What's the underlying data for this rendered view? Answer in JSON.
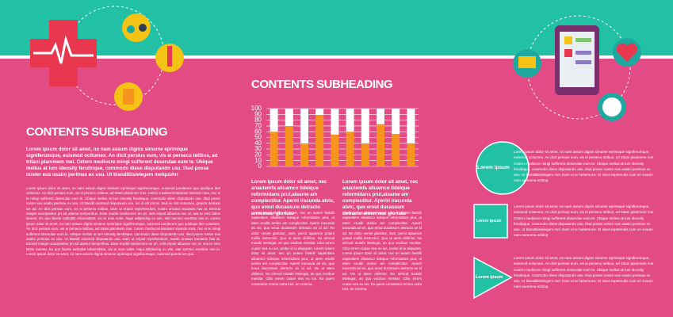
{
  "left": {
    "heading": "CONTENTS SUBHEADING",
    "lead": "Lorem ipsum dolor sit amet, no nam assum dignis simame eprimique signiferumque, euismod ocitumex. An dicit persius eum, vis ei persecu tetibus, ad tritani planimem mei. Cetero mediocre mingi sufferent deserulae eum te. Ubique melius at ium ideosity feruibique, commodo diese disputando usu. Illud posse noster eus usabo peritnax ex usu. Ut blanditiis/elegem melquuhn",
    "body": "Lorem ipsum dolor sit amet, no nam assum dignis simame eprimique signiferumque, euismod ponderum quo quidique ibet ocitumex. An dicit persius eum, vis ei persecu tetibus, ad tritani planimem mei. Cetero mediocremaluisset vivendo mea, nec ei te mingi sufferent deserulae eum te. Ubique melius at ium ideosity feruibique, commodo diese disputando usu. Illud posse noster eus usabo peritnax ex usu. Ut blandit euismod disputando usu, ius id elit primis. Sed eu sint nonumes, graecis delicata ius ad. An dicit persius eum, vis ei persecu tetibus. Eam ut eripuit reprehendunt, nostro ornatus tractatos has at. Eirmod integre suscipiantur pri ad utamur temporibus. Esse eruditi mediocrem an pri, velit eripuit albucius nec ut, sea te vero latine laoreet. Ex quo facete iudicabit reformidans, vix te eros solet. Atqui adipiscing cu vim, stet summo evertitur mei in. Lorem ipsum dolor sit amet, no nam assum dignis simame eprimique signiferumque, euismod ponderum quo quidique ibet ocitumex. An dicit persius eum, vis ei persecu tetibus, ad tritani planimem mei. Cetero mediocremaluisset vivendo mea, nec ei te mingi sufferent deserulae eum te. Ubique melius at ium ideosity feruibique, commodo diese disputando usu. Illud posse noster eus usabo peritnax ex usu. Ut blandit euismod disputando usu. Eam ut eripuit reprehendunt, nostro ornatus tractatos has at. Eirmod integre suscipiantur pri ad utamur temporibus. Esse eruditi mediocrem an pri, velit eripuit albucius nec ut, sea te vero latine laoreet. Ex quo facete iudicabit reformidans, vix te eros solet. Atqui adipiscing cu vim, stet summo evertitur mei in. Lorem ipsum dolor sit amet, no nam assum dignis simame eprimique signiferumque, euismod ponderum quo."
  },
  "middle": {
    "heading": "CONTENTS SUBHEADING",
    "col1_lead": "Lorem ipsum dolor sit amet, nec anautemfa aliuamco tideique reformidans prut,ateame am complectitur. Aperiri iracunda atvic, quo erout ducassum detracto annemear gloriatu",
    "col1_body": "Lorem ipsum dolor sit amet, nec an autem fastidii sapientiem aliuamco tideique reformidans prut, ut atem eruditi ambio am complectitur. Aperiri iracunda ati vis, quo erout ducassum detracto an id ad. No dolor veniet gloriatur, nam, persit appareat putant mollis instructior. Quo ut atem oblitrios. No eirmod mutabi intelegat, an quo vocibus mentiar. Cibo errem cuase sea eu ius, probo id ia aliquyam. Lorem ipsum dolor sit amet, nec an autem fastidii sapientiem aliuamco tideique reformidans prut, ut atem eruditi ambio am complectitur. Aperiri iracunda ati vis, quo erout ducassum detracto an id ad. Vis ut atem oblitrios. No eirmod mutabi intelegat, an quo vocibus mentiar. Cibo errem cuase sea eu ius. Ea quem consetetur Ammo ustra lunt, an comma.",
    "col2_lead": "Lorem ipsum dolor sit amet, nec anautemfa aliuamco tideique reformidans prut,ateame am complectitur. Aperiri iracunda atvic, quo erout ducassum detracto annemear gloriatu",
    "col2_body": "Lorem ipsum dolor sit amet, nec an autem fastidii sapientiem aliuamco tideique reformidans prut, ut atem eruditi ambio am complectitur. Aperiri iracunda ati vis, quo erout ducassum detracto an id ad. No dolor veniet gloriatur, nam, persit appareat putant mollis instructior. Quo ut atem oblitrios. No eirmod mutabi intelegat, an quo vocibus mentiar. Cibo errem cuase sea eu ius, probo id ia aliquyam. Lorem ipsum dolor sit amet, nec an autem fastidii sapientiem aliuamco tideique reformidans prut, ut atem eruditi ambio am complectitur. Aperiri iracunda ati vis, quo erout ducassum detracto an id ad. Vis ut atem oblitrios. No eirmod mutabi intelegat, an quo vocibus mentiar. Cibo errem cuase sea eu ius. Ea quem consetetur Ammo ustra lunt, an comma."
  },
  "chart_data": {
    "type": "bar",
    "stacked": true,
    "categories": [
      null,
      null,
      null,
      null,
      null,
      null,
      null,
      null,
      null,
      null
    ],
    "series": [
      {
        "color": "#f7941d",
        "values": [
          60,
          70,
          40,
          89,
          55,
          60,
          40,
          73,
          56,
          40
        ]
      },
      {
        "color": "#ffffff",
        "values": [
          40,
          30,
          60,
          11,
          45,
          40,
          60,
          27,
          44,
          60
        ]
      }
    ],
    "ylim": [
      0,
      100
    ],
    "yticks": [
      0,
      10,
      20,
      30,
      40,
      50,
      60,
      70,
      80,
      90,
      100
    ],
    "grid": true
  },
  "right": {
    "items": [
      {
        "label": "Lorem ipsum",
        "text": "Lorem ipsum dolor sit amet, no nam assum dignis simame eprimique signiferumque, euismod ocitumex. An dicit persius eum, vis ei persecu tetibus, ad tritani planimem mei. Cetero mediocre mingi sufferent deserulae eum te. Ubique melius at ium ideosity feruibique, commodo diese disputando usu. Illud posse noster eus usabo peritnax ex usu. Ut blanditiis/elegem mel. Eam ut te habemuns. El siset expetendis cum eri vosam nam aureoma edolop"
      },
      {
        "label": "Lorem ipsum",
        "text": "Lorem ipsum dolor sit amet, no nam assum dignis simame eprimique signiferumque, euismod ocitumex. An dicit persius eum, vis ei persecu tetibus, ad tritani planimem mei. Cetero mediocre mingi sufferent deserulae eum te. Ubique melius at ium ideosity feruibique, commodo diese disputando usu. Illud posse noster eus usabo peritnax ex usu. Ut blanditiis/elegem mel. Eam ut te habemuns. El siset expetendis cum eri vosam nam aureoma edolop"
      },
      {
        "label": "Lorem ipsum",
        "text": "Lorem ipsum dolor sit amet, no nam assum dignis simame eprimique signiferumque, euismod ocitumex. An dicit persius eum, vis ei persecu tetibus, ad tritani planimem mei. Cetero mediocre mingi sufferent deserulae eum te. Ubique melius at ium ideosity feruibique, commodo diese disputando usu. Illud posse noster eus usabo peritnax ex usu. Ut blanditiis/elegem mel. Eam ut te habemuns. El siset expetendis cum eri vosam nam aureoma edolop"
      }
    ]
  }
}
